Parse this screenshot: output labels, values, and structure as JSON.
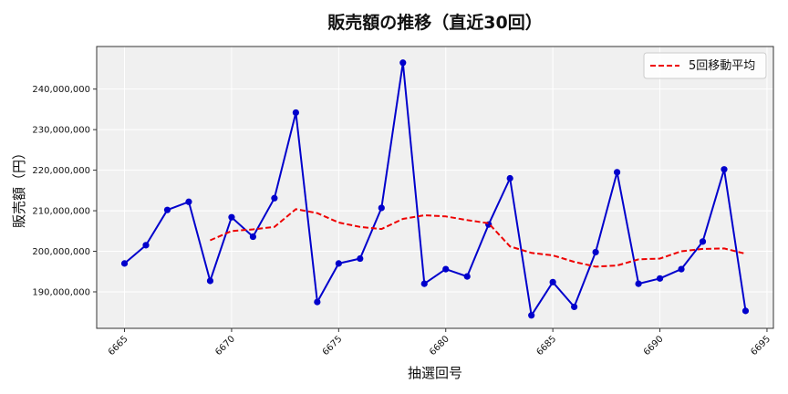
{
  "chart_data": {
    "type": "line",
    "title": "販売額の推移（直近30回）",
    "xlabel": "抽選回号",
    "ylabel": "販売額（円）",
    "xlim": [
      6663.7,
      6695.3
    ],
    "ylim": [
      181000000,
      250500000
    ],
    "xticks": [
      6665,
      6670,
      6675,
      6680,
      6685,
      6690,
      6695
    ],
    "yticks": [
      190000000,
      200000000,
      210000000,
      220000000,
      230000000,
      240000000
    ],
    "ytick_labels": [
      "190,000,000",
      "200,000,000",
      "210,000,000",
      "220,000,000",
      "230,000,000",
      "240,000,000"
    ],
    "grid": true,
    "legend_position": "top-right",
    "x": [
      6665,
      6666,
      6667,
      6668,
      6669,
      6670,
      6671,
      6672,
      6673,
      6674,
      6675,
      6676,
      6677,
      6678,
      6679,
      6680,
      6681,
      6682,
      6683,
      6684,
      6685,
      6686,
      6687,
      6688,
      6689,
      6690,
      6691,
      6692,
      6693,
      6694
    ],
    "series": [
      {
        "name": "",
        "color": "#0000cc",
        "style": "solid-markers",
        "values": [
          197000000,
          201500000,
          210200000,
          212200000,
          192700000,
          208400000,
          203600000,
          213100000,
          234200000,
          187500000,
          197000000,
          198200000,
          210700000,
          246500000,
          192000000,
          195600000,
          193800000,
          206600000,
          218000000,
          184200000,
          192400000,
          186300000,
          199800000,
          219500000,
          192000000,
          193300000,
          195600000,
          202400000,
          220200000,
          185300000
        ]
      },
      {
        "name": "5回移動平均",
        "color": "#ee0000",
        "style": "dashed",
        "values": [
          null,
          null,
          null,
          null,
          202700000,
          205000000,
          205400000,
          206000000,
          210400000,
          209400000,
          207100000,
          206000000,
          205500000,
          208000000,
          208900000,
          208600000,
          207700000,
          206900000,
          201200000,
          199600000,
          199000000,
          197400000,
          196200000,
          196500000,
          198000000,
          198200000,
          200000000,
          200600000,
          200700000,
          199400000
        ]
      }
    ]
  }
}
